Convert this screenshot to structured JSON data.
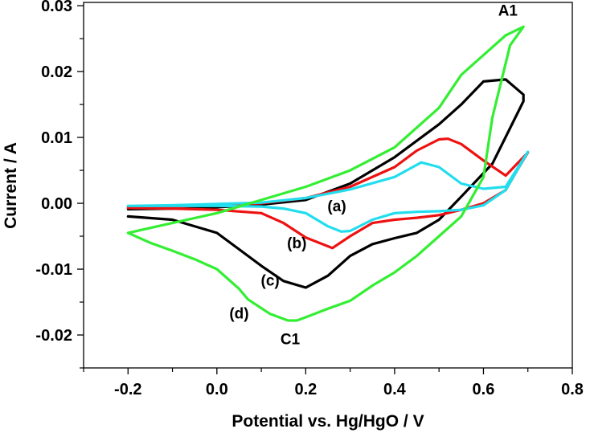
{
  "chart_data": {
    "type": "line",
    "title": "",
    "xlabel": "Potential vs. Hg/HgO / V",
    "ylabel": "Current / A",
    "xlim": [
      -0.3,
      0.8
    ],
    "ylim": [
      -0.025,
      0.0305
    ],
    "x_ticks": [
      -0.2,
      0.0,
      0.2,
      0.4,
      0.6,
      0.8
    ],
    "x_tick_labels": [
      "-0.2",
      "0.0",
      "0.2",
      "0.4",
      "0.6",
      "0.8"
    ],
    "y_ticks": [
      -0.02,
      -0.01,
      0.0,
      0.01,
      0.02,
      0.03
    ],
    "y_tick_labels": [
      "-0.02",
      "-0.01",
      "0.00",
      "0.01",
      "0.02",
      "0.03"
    ],
    "grid": false,
    "series": [
      {
        "color": "#000000",
        "x": [
          -0.2,
          -0.1,
          0.0,
          0.1,
          0.2,
          0.3,
          0.4,
          0.5,
          0.55,
          0.6,
          0.65,
          0.69,
          0.69,
          0.62,
          0.55,
          0.5,
          0.45,
          0.4,
          0.35,
          0.3,
          0.25,
          0.2,
          0.15,
          0.1,
          0.05,
          0.0,
          -0.1,
          -0.2
        ],
        "y": [
          -0.0009,
          -0.0008,
          -0.0006,
          -0.0002,
          0.0005,
          0.003,
          0.007,
          0.012,
          0.015,
          0.0185,
          0.0188,
          0.0165,
          0.0155,
          0.006,
          0.001,
          -0.0025,
          -0.0045,
          -0.0053,
          -0.0062,
          -0.008,
          -0.011,
          -0.0128,
          -0.0118,
          -0.0095,
          -0.007,
          -0.0045,
          -0.0025,
          -0.002
        ]
      },
      {
        "color": "#ee1111",
        "x": [
          -0.2,
          -0.1,
          0.0,
          0.1,
          0.2,
          0.3,
          0.4,
          0.45,
          0.5,
          0.52,
          0.55,
          0.6,
          0.65,
          0.7,
          0.68,
          0.65,
          0.6,
          0.55,
          0.5,
          0.45,
          0.4,
          0.35,
          0.3,
          0.26,
          0.2,
          0.15,
          0.1,
          0.0,
          -0.1,
          -0.2
        ],
        "y": [
          -0.0006,
          -0.0005,
          -0.0003,
          0.0,
          0.0008,
          0.0025,
          0.0055,
          0.008,
          0.0097,
          0.0098,
          0.009,
          0.0065,
          0.0042,
          0.0077,
          0.0055,
          0.002,
          0.0,
          -0.001,
          -0.0018,
          -0.0022,
          -0.0025,
          -0.003,
          -0.005,
          -0.0068,
          -0.0052,
          -0.003,
          -0.0015,
          -0.001,
          -0.0008,
          -0.0007
        ]
      },
      {
        "color": "#22ddee",
        "x": [
          -0.2,
          -0.1,
          0.0,
          0.1,
          0.2,
          0.3,
          0.4,
          0.46,
          0.5,
          0.55,
          0.6,
          0.65,
          0.7,
          0.65,
          0.6,
          0.55,
          0.5,
          0.45,
          0.4,
          0.35,
          0.3,
          0.28,
          0.25,
          0.2,
          0.15,
          0.1,
          0.0,
          -0.1,
          -0.2
        ],
        "y": [
          -0.0004,
          -0.0003,
          -0.0001,
          0.0001,
          0.0008,
          0.0021,
          0.004,
          0.0062,
          0.0055,
          0.003,
          0.0022,
          0.0025,
          0.0078,
          0.002,
          -0.0003,
          -0.001,
          -0.0012,
          -0.0013,
          -0.0015,
          -0.0025,
          -0.0042,
          -0.0043,
          -0.0035,
          -0.0015,
          -0.0008,
          -0.0005,
          -0.0004,
          -0.0004,
          -0.0004
        ]
      },
      {
        "color": "#33ee33",
        "x": [
          -0.2,
          -0.1,
          0.0,
          0.1,
          0.2,
          0.3,
          0.4,
          0.5,
          0.55,
          0.6,
          0.65,
          0.69,
          0.66,
          0.62,
          0.6,
          0.55,
          0.5,
          0.45,
          0.4,
          0.35,
          0.3,
          0.25,
          0.2,
          0.18,
          0.16,
          0.12,
          0.07,
          0.05,
          0.0,
          -0.05,
          -0.1,
          -0.15,
          -0.2
        ],
        "y": [
          -0.0045,
          -0.003,
          -0.0015,
          0.0005,
          0.0025,
          0.005,
          0.0085,
          0.0145,
          0.0195,
          0.0225,
          0.0255,
          0.0268,
          0.024,
          0.013,
          0.004,
          -0.002,
          -0.005,
          -0.008,
          -0.0105,
          -0.0125,
          -0.0148,
          -0.016,
          -0.0173,
          -0.0178,
          -0.0178,
          -0.0168,
          -0.0146,
          -0.013,
          -0.01,
          -0.0085,
          -0.0072,
          -0.006,
          -0.0045
        ]
      }
    ],
    "annotations": [
      {
        "text": "A1",
        "x": 0.655,
        "y": 0.0285
      },
      {
        "text": "(a)",
        "x": 0.27,
        "y": -0.0012
      },
      {
        "text": "(b)",
        "x": 0.18,
        "y": -0.0068
      },
      {
        "text": "(c)",
        "x": 0.12,
        "y": -0.0125
      },
      {
        "text": "(d)",
        "x": 0.05,
        "y": -0.0175
      },
      {
        "text": "C1",
        "x": 0.165,
        "y": -0.0214
      }
    ]
  }
}
